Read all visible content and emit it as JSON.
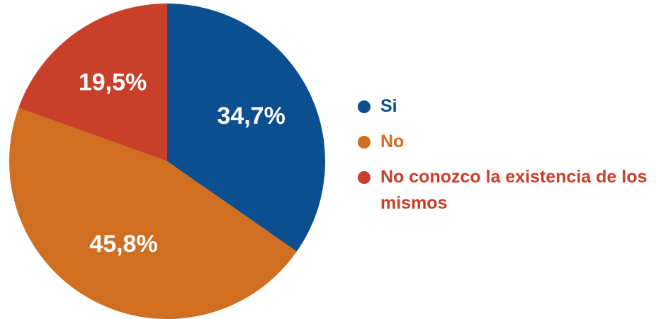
{
  "chart_data": {
    "type": "pie",
    "categories": [
      "Si",
      "No",
      "No conozco la existencia de los mismos"
    ],
    "values": [
      34.7,
      45.8,
      19.5
    ],
    "value_labels": [
      "34,7%",
      "45,8%",
      "19,5%"
    ],
    "colors": [
      "#0b4f91",
      "#d06f21",
      "#c8402a"
    ]
  }
}
